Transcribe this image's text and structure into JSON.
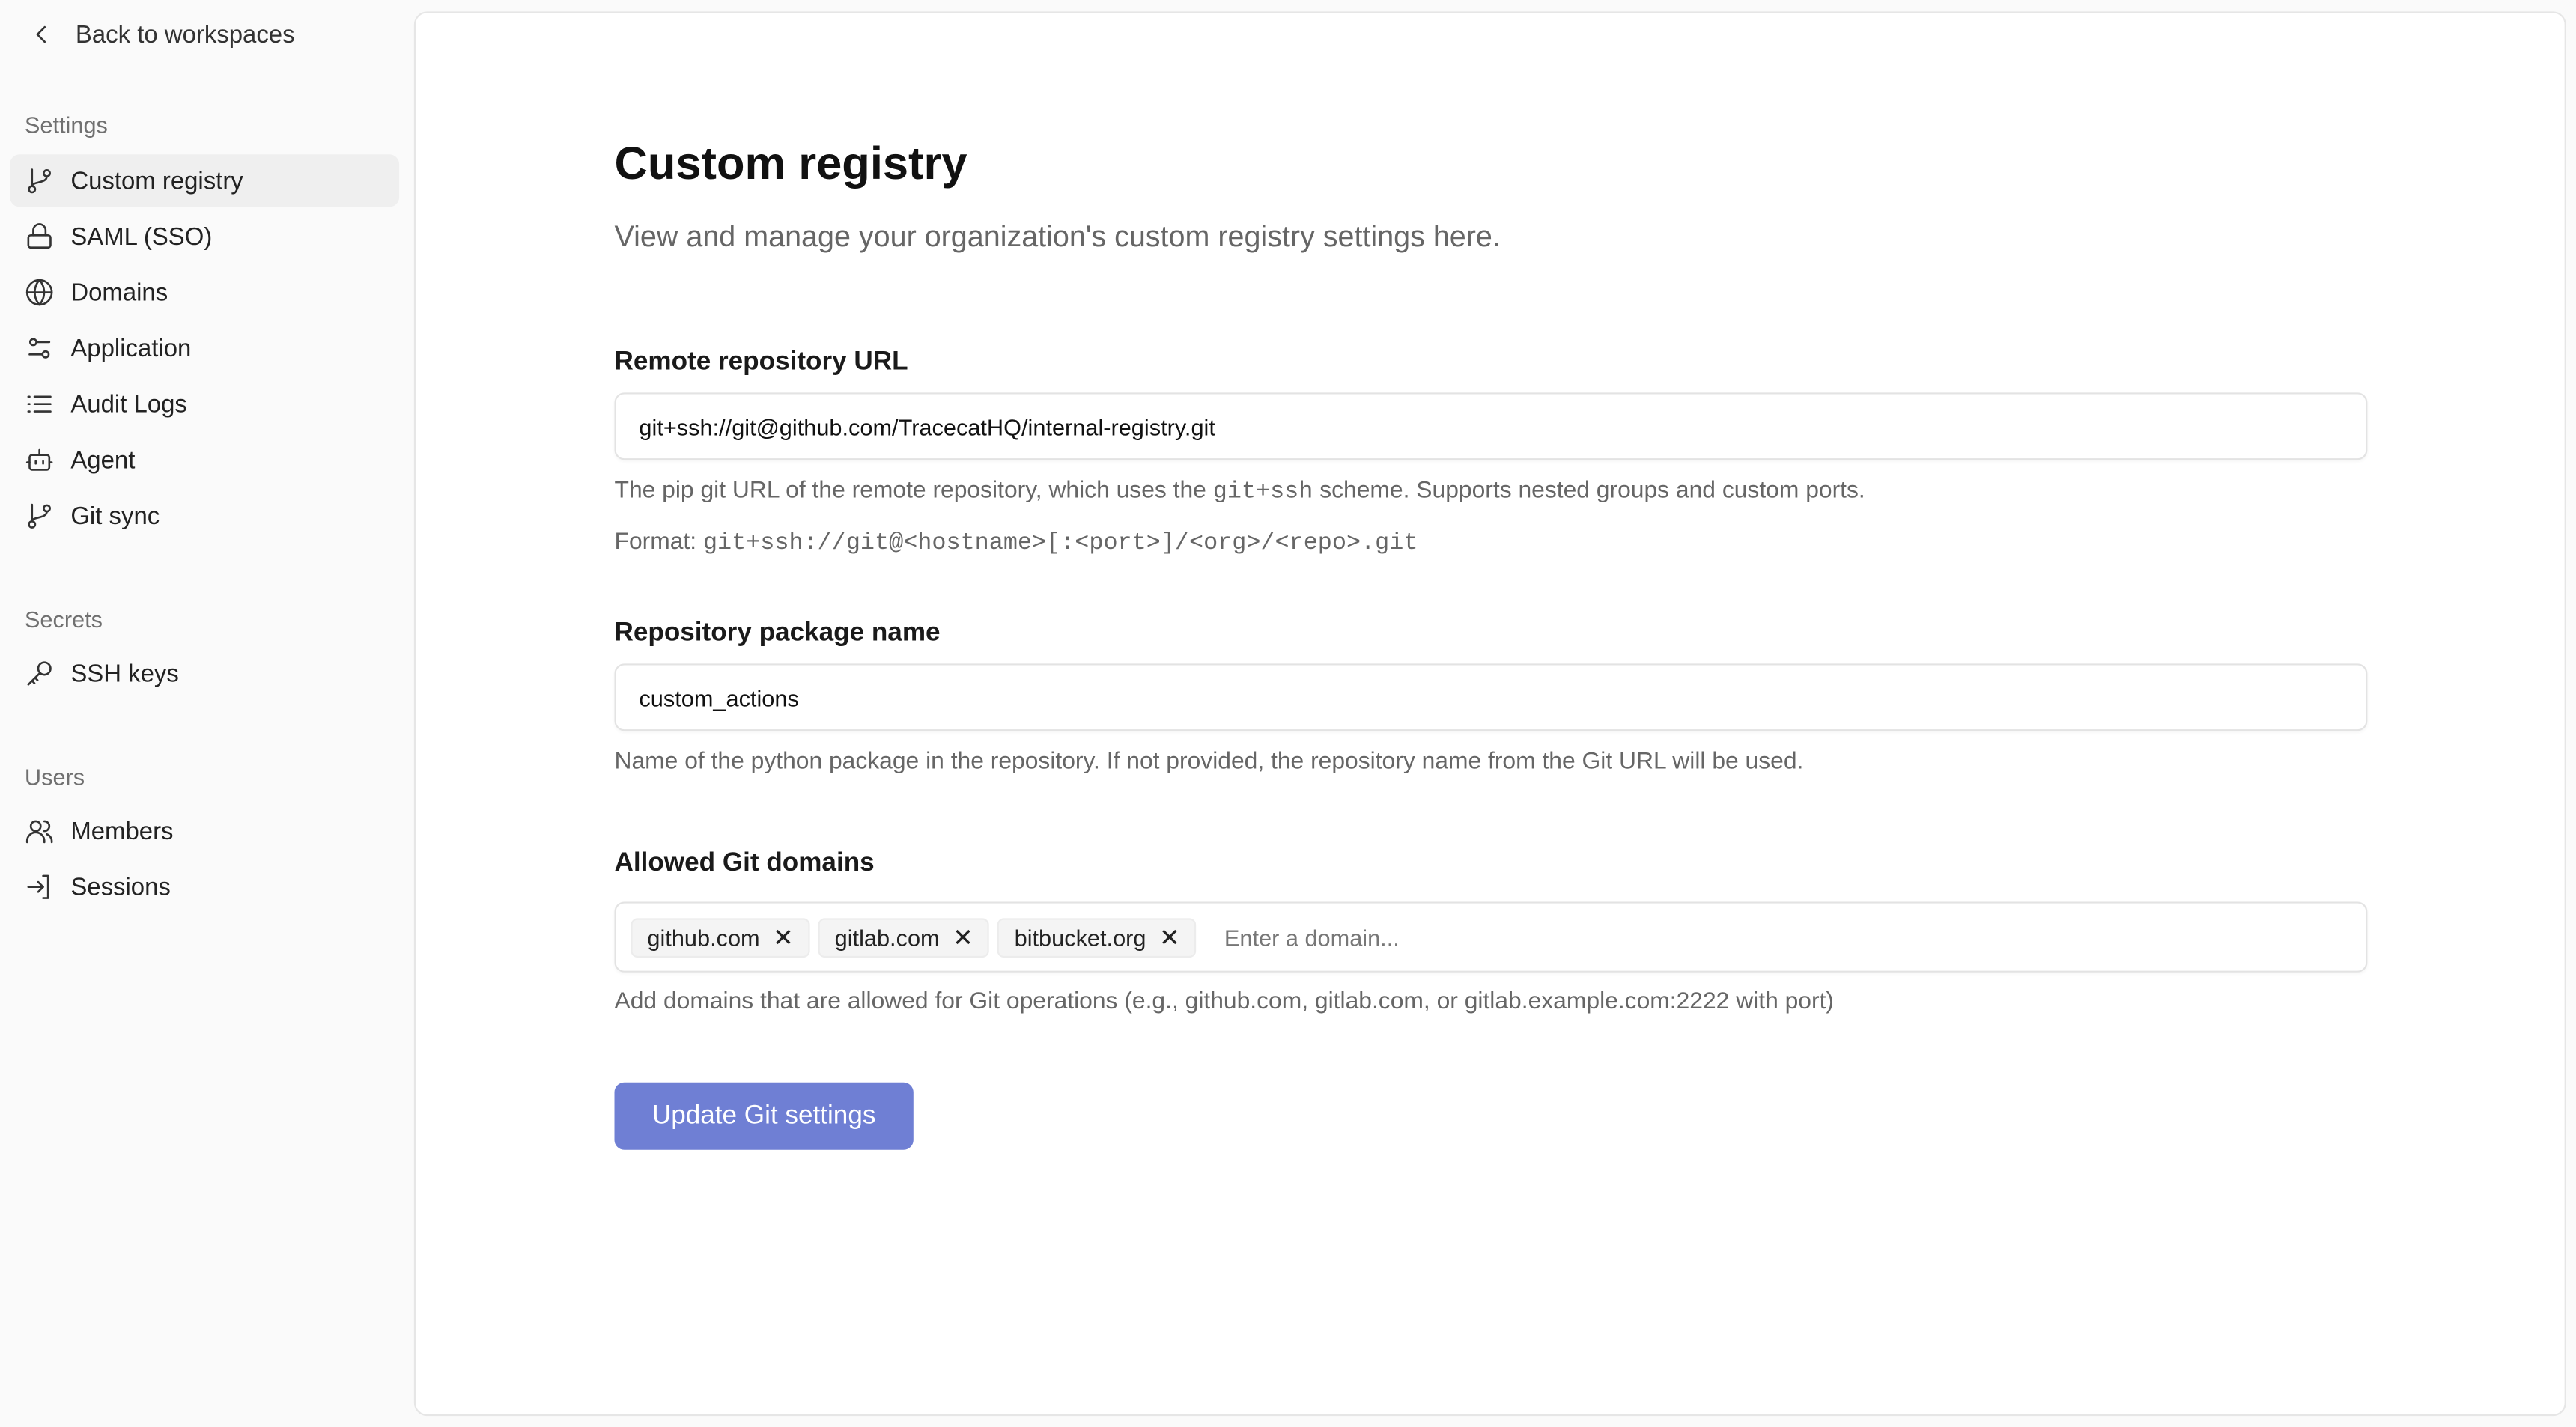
{
  "sidebar": {
    "back_label": "Back to workspaces",
    "sections": [
      {
        "title": "Settings",
        "items": [
          {
            "label": "Custom registry",
            "icon": "git-branch-icon",
            "active": true
          },
          {
            "label": "SAML (SSO)",
            "icon": "lock-icon"
          },
          {
            "label": "Domains",
            "icon": "globe-icon"
          },
          {
            "label": "Application",
            "icon": "sliders-icon"
          },
          {
            "label": "Audit Logs",
            "icon": "list-icon"
          },
          {
            "label": "Agent",
            "icon": "bot-icon"
          },
          {
            "label": "Git sync",
            "icon": "git-branch-icon"
          }
        ]
      },
      {
        "title": "Secrets",
        "items": [
          {
            "label": "SSH keys",
            "icon": "key-icon"
          }
        ]
      },
      {
        "title": "Users",
        "items": [
          {
            "label": "Members",
            "icon": "users-icon"
          },
          {
            "label": "Sessions",
            "icon": "log-in-icon"
          }
        ]
      }
    ]
  },
  "main": {
    "title": "Custom registry",
    "subtitle": "View and manage your organization's custom registry settings here.",
    "repo_url": {
      "label": "Remote repository URL",
      "value": "git+ssh://git@github.com/TracecatHQ/internal-registry.git",
      "help_pre": "The pip git URL of the remote repository, which uses the ",
      "help_code": "git+ssh",
      "help_post": " scheme. Supports nested groups and custom ports.",
      "format_label": "Format: ",
      "format_code": "git+ssh://git@<hostname>[:<port>]/<org>/<repo>.git"
    },
    "package": {
      "label": "Repository package name",
      "value": "custom_actions",
      "help": "Name of the python package in the repository. If not provided, the repository name from the Git URL will be used."
    },
    "domains": {
      "label": "Allowed Git domains",
      "tags": [
        "github.com",
        "gitlab.com",
        "bitbucket.org"
      ],
      "remove_glyph": "✕",
      "placeholder": "Enter a domain...",
      "help": "Add domains that are allowed for Git operations (e.g., github.com, gitlab.com, or gitlab.example.com:2222 with port)"
    },
    "submit_label": "Update Git settings"
  },
  "colors": {
    "accent": "#6f7fd4",
    "active_bg": "#efefef"
  }
}
